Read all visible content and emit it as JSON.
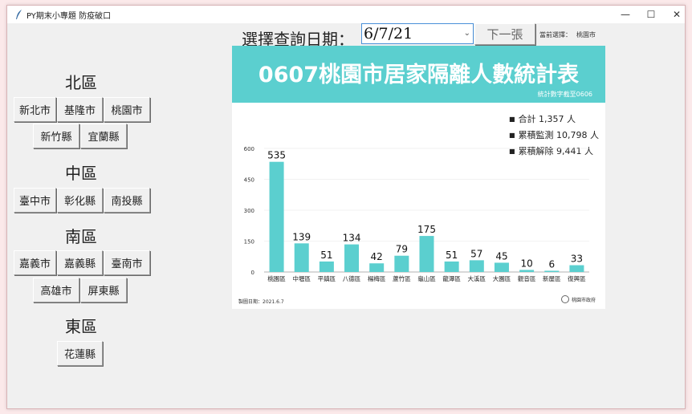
{
  "window": {
    "title": "PY期末小專題 防疫破口",
    "min": "—",
    "max": "☐",
    "close": "✕"
  },
  "regions": [
    {
      "name": "北區",
      "buttons": [
        "新北市",
        "基隆市",
        "桃園市",
        "新竹縣",
        "宜蘭縣"
      ]
    },
    {
      "name": "中區",
      "buttons": [
        "臺中市",
        "彰化縣",
        "南投縣"
      ]
    },
    {
      "name": "南區",
      "buttons": [
        "嘉義市",
        "嘉義縣",
        "臺南市",
        "高雄市",
        "屏東縣"
      ]
    },
    {
      "name": "東區",
      "buttons": [
        "花蓮縣"
      ]
    }
  ],
  "toolbar": {
    "date_label": "選擇查詢日期：",
    "date_value": "6/7/21",
    "next_label": "下一張",
    "current_label": "當前選擇：",
    "current_value": "桃園市"
  },
  "poster": {
    "title": "0607桃園市居家隔離人數統計表",
    "subtitle": "統計數字截至0606",
    "legend": [
      "合計 1,357 人",
      "累積監測 10,798 人",
      "累積解除 9,441 人"
    ],
    "footer_left": "製圖日期：2021.6.7",
    "footer_right": "桃園市政府",
    "bar_color": "#5bcfcf"
  },
  "chart_data": {
    "type": "bar",
    "categories": [
      "桃園區",
      "中壢區",
      "平鎮區",
      "八德區",
      "楊梅區",
      "蘆竹區",
      "龜山區",
      "龍潭區",
      "大溪區",
      "大園區",
      "觀音區",
      "新屋區",
      "復興區"
    ],
    "values": [
      535,
      139,
      51,
      134,
      42,
      79,
      175,
      51,
      57,
      45,
      10,
      6,
      33
    ],
    "yticks": [
      0,
      150,
      300,
      450,
      600
    ],
    "ylim": [
      0,
      600
    ],
    "grid": true
  }
}
